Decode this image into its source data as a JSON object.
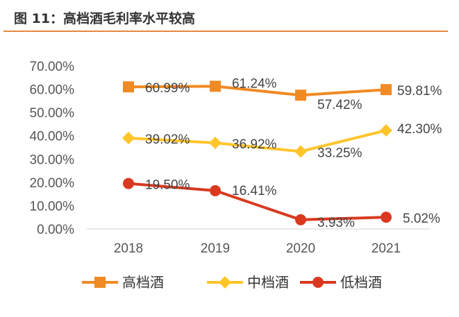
{
  "title": "图 11：高档酒毛利率水平较高",
  "chart_data": {
    "type": "line",
    "title": "",
    "xlabel": "",
    "ylabel": "",
    "categories": [
      "2018",
      "2019",
      "2020",
      "2021"
    ],
    "ylim": [
      0,
      70
    ],
    "yticks": [
      "0.00%",
      "10.00%",
      "20.00%",
      "30.00%",
      "40.00%",
      "50.00%",
      "60.00%",
      "70.00%"
    ],
    "grid": false,
    "legend_position": "bottom",
    "series": [
      {
        "name": "高档酒",
        "values": [
          60.99,
          61.24,
          57.42,
          59.81
        ],
        "labels": [
          "60.99%",
          "61.24%",
          "57.42%",
          "59.81%"
        ],
        "color": "#F08A24",
        "marker": "square"
      },
      {
        "name": "中档酒",
        "values": [
          39.02,
          36.92,
          33.25,
          42.3
        ],
        "labels": [
          "39.02%",
          "36.92%",
          "33.25%",
          "42.30%"
        ],
        "color": "#FFC52B",
        "marker": "diamond"
      },
      {
        "name": "低档酒",
        "values": [
          19.5,
          16.41,
          3.93,
          5.02
        ],
        "labels": [
          "19.50%",
          "16.41%",
          "3.93%",
          "5.02%"
        ],
        "color": "#D93A1F",
        "marker": "circle"
      }
    ]
  }
}
